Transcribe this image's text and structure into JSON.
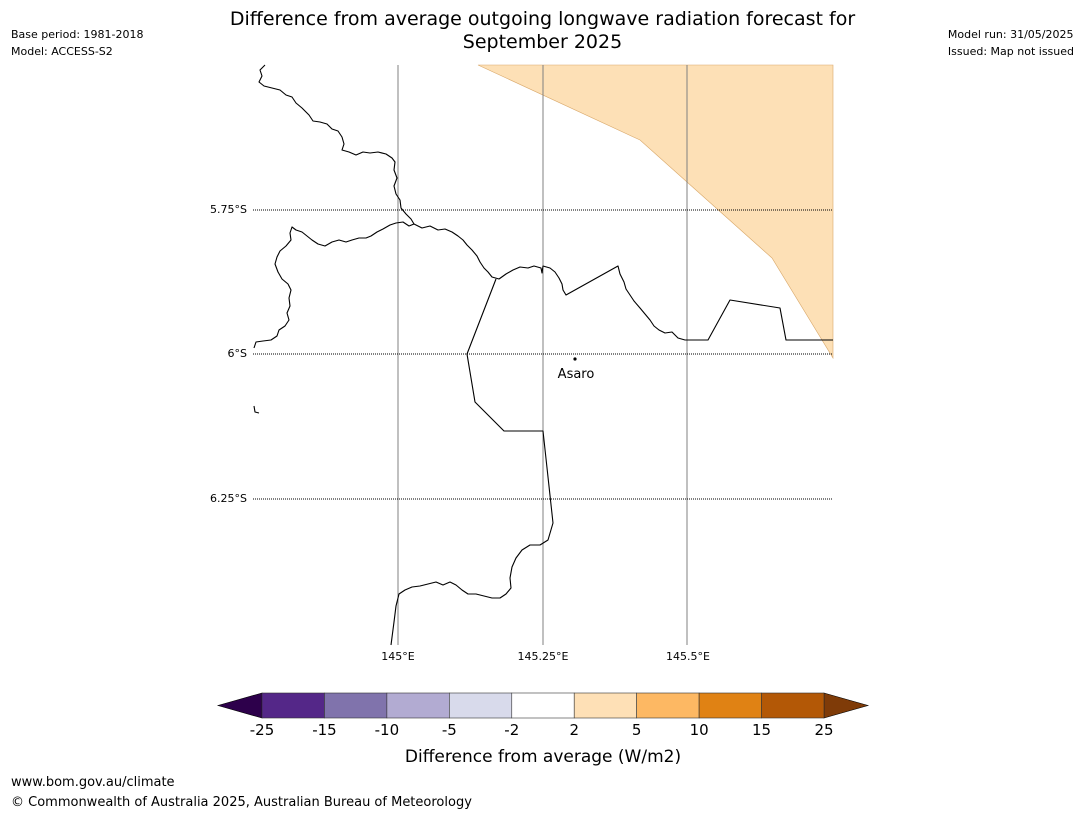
{
  "header": {
    "title_line1": "Difference from average outgoing longwave radiation forecast for",
    "title_line2": "September 2025",
    "base_period": "Base period: 1981-2018",
    "model": "Model: ACCESS-S2",
    "model_run": "Model run: 31/05/2025",
    "issued": "Issued: Map not issued"
  },
  "map": {
    "lat_labels": [
      "5.75°S",
      "6°S",
      "6.25°S"
    ],
    "lon_labels": [
      "145°E",
      "145.25°E",
      "145.5°E"
    ],
    "place_label": "Asaro",
    "shaded_category": "2 to 5",
    "shaded_color": "#fde0b6"
  },
  "colorbar": {
    "title": "Difference from average (W/m2)",
    "tick_labels": [
      "-25",
      "-15",
      "-10",
      "-5",
      "-2",
      "2",
      "5",
      "10",
      "15",
      "25"
    ],
    "under_color": "#2d004b",
    "over_color": "#7f3b08",
    "bin_colors": [
      "#542788",
      "#8073ac",
      "#b2abd2",
      "#d8daeb",
      "#ffffff",
      "#fee0b6",
      "#fdb863",
      "#e08214",
      "#b35806"
    ]
  },
  "footer": {
    "url": "www.bom.gov.au/climate",
    "copyright": "© Commonwealth of Australia 2025, Australian Bureau of Meteorology"
  }
}
